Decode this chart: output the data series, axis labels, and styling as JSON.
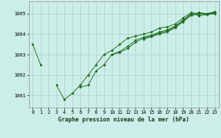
{
  "title": "Graphe pression niveau de la mer (hPa)",
  "bg_color": "#cceee8",
  "grid_color": "#aacccc",
  "line_color": "#1a6b1a",
  "marker_color": "#1a6b1a",
  "xlim": [
    -0.5,
    23.5
  ],
  "ylim": [
    1000.4,
    1005.6
  ],
  "yticks": [
    1001,
    1002,
    1003,
    1004,
    1005
  ],
  "xticks": [
    0,
    1,
    2,
    3,
    4,
    5,
    6,
    7,
    8,
    9,
    10,
    11,
    12,
    13,
    14,
    15,
    16,
    17,
    18,
    19,
    20,
    21,
    22,
    23
  ],
  "series": [
    [
      1003.5,
      1002.5,
      null,
      1001.5,
      1000.8,
      1001.1,
      1001.5,
      1002.0,
      1002.5,
      1003.0,
      1003.2,
      1003.5,
      1003.8,
      1003.9,
      1004.0,
      1004.1,
      1004.3,
      1004.35,
      1004.5,
      1004.8,
      1005.05,
      1005.0,
      1005.0,
      1005.1
    ],
    [
      null,
      null,
      null,
      null,
      null,
      null,
      1001.4,
      1001.5,
      1002.2,
      1002.5,
      1003.0,
      1003.15,
      1003.4,
      1003.7,
      1003.85,
      1003.95,
      1004.1,
      1004.2,
      1004.4,
      1004.7,
      1005.0,
      1004.9,
      1004.95,
      1005.0
    ],
    [
      null,
      null,
      null,
      null,
      null,
      null,
      null,
      null,
      null,
      null,
      1003.0,
      1003.1,
      1003.3,
      1003.6,
      1003.8,
      1003.9,
      1004.05,
      1004.15,
      1004.35,
      1004.65,
      1004.95,
      1005.05,
      1005.0,
      1005.05
    ],
    [
      null,
      null,
      null,
      null,
      null,
      null,
      null,
      null,
      null,
      null,
      null,
      null,
      null,
      null,
      1003.75,
      1003.88,
      1004.0,
      1004.1,
      1004.32,
      1004.6,
      1004.92,
      1004.98,
      1004.98,
      1005.02
    ]
  ],
  "title_fontsize": 6,
  "tick_fontsize": 5
}
